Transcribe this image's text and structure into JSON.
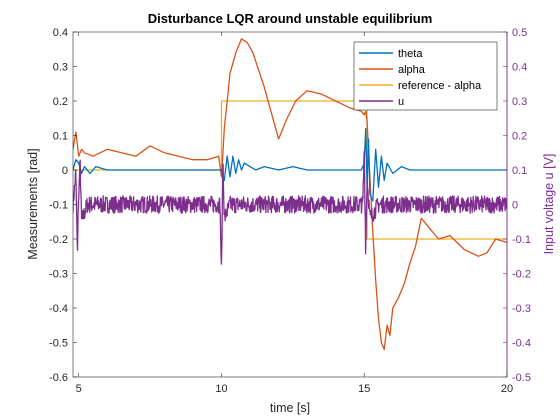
{
  "chart_data": {
    "type": "line",
    "title": "Disturbance LQR around unstable equilibrium",
    "xlabel": "time [s]",
    "ylabel_left": "Measurements [rad]",
    "ylabel_right": "Input voltage u [V]",
    "xlim": [
      4.8,
      20
    ],
    "ylim_left": [
      -0.6,
      0.4
    ],
    "ylim_right": [
      -0.5,
      0.5
    ],
    "xticks": [
      5,
      10,
      15,
      20
    ],
    "yticks_left": [
      -0.6,
      -0.5,
      -0.4,
      -0.3,
      -0.2,
      -0.1,
      0,
      0.1,
      0.2,
      0.3,
      0.4
    ],
    "yticks_right": [
      -0.5,
      -0.4,
      -0.3,
      -0.2,
      -0.1,
      0,
      0.1,
      0.2,
      0.3,
      0.4,
      0.5
    ],
    "grid": false,
    "legend_position": "top-right",
    "colors": {
      "theta": "#0072BD",
      "alpha": "#D95319",
      "reference": "#EDB120",
      "u": "#7E2F8E",
      "left_axis": "#262626",
      "right_axis": "#7E2F8E"
    },
    "series": [
      {
        "name": "theta",
        "axis": "left",
        "x": [
          4.8,
          4.9,
          5.0,
          5.1,
          5.2,
          5.4,
          5.6,
          6.0,
          6.5,
          7.0,
          7.5,
          8.0,
          8.5,
          9.0,
          9.5,
          9.9,
          10.0,
          10.05,
          10.1,
          10.2,
          10.3,
          10.4,
          10.5,
          10.6,
          10.7,
          10.8,
          11.0,
          11.2,
          11.5,
          12.0,
          12.5,
          13.0,
          13.5,
          14.0,
          14.5,
          14.9,
          15.0,
          15.05,
          15.1,
          15.15,
          15.2,
          15.3,
          15.4,
          15.5,
          15.6,
          15.7,
          15.8,
          16.0,
          16.3,
          16.6,
          17.0,
          17.5,
          18.0,
          18.5,
          19.0,
          19.5,
          20.0
        ],
        "y": [
          0.0,
          0.03,
          0.02,
          -0.01,
          0.01,
          -0.01,
          0.01,
          0.0,
          0.0,
          0.0,
          0.0,
          0.0,
          0.0,
          0.0,
          0.0,
          0.0,
          0.0,
          -0.02,
          -0.03,
          0.04,
          -0.02,
          0.04,
          -0.01,
          0.03,
          0.0,
          0.02,
          0.01,
          0.0,
          0.01,
          0.0,
          0.01,
          0.0,
          0.0,
          0.0,
          0.0,
          0.0,
          0.02,
          0.12,
          -0.05,
          0.09,
          -0.07,
          -0.09,
          0.06,
          -0.05,
          0.04,
          -0.03,
          0.02,
          -0.01,
          0.01,
          0.0,
          0.0,
          0.0,
          0.0,
          0.0,
          0.0,
          0.0,
          0.0
        ]
      },
      {
        "name": "alpha",
        "axis": "left",
        "x": [
          4.8,
          4.9,
          5.0,
          5.1,
          5.2,
          5.5,
          6.0,
          6.5,
          7.0,
          7.5,
          8.0,
          8.5,
          9.0,
          9.5,
          9.9,
          10.0,
          10.1,
          10.2,
          10.3,
          10.5,
          10.7,
          10.9,
          11.1,
          11.3,
          11.5,
          11.7,
          12.0,
          12.3,
          12.6,
          13.0,
          13.5,
          14.0,
          14.5,
          14.9,
          15.0,
          15.05,
          15.1,
          15.2,
          15.3,
          15.4,
          15.5,
          15.6,
          15.7,
          15.8,
          15.9,
          16.0,
          16.2,
          16.4,
          16.6,
          16.8,
          17.0,
          17.3,
          17.6,
          18.0,
          18.5,
          19.0,
          19.3,
          19.6,
          20.0
        ],
        "y": [
          0.06,
          0.11,
          0.04,
          0.06,
          0.05,
          0.04,
          0.06,
          0.05,
          0.04,
          0.07,
          0.05,
          0.04,
          0.03,
          0.03,
          0.04,
          -0.02,
          0.12,
          0.2,
          0.28,
          0.34,
          0.38,
          0.37,
          0.34,
          0.29,
          0.24,
          0.18,
          0.09,
          0.15,
          0.2,
          0.23,
          0.22,
          0.2,
          0.18,
          0.17,
          0.16,
          0.17,
          0.14,
          -0.02,
          -0.18,
          -0.32,
          -0.43,
          -0.5,
          -0.52,
          -0.45,
          -0.48,
          -0.4,
          -0.37,
          -0.33,
          -0.27,
          -0.22,
          -0.14,
          -0.17,
          -0.2,
          -0.19,
          -0.23,
          -0.25,
          -0.24,
          -0.2,
          -0.21
        ]
      },
      {
        "name": "reference - alpha",
        "axis": "left",
        "x": [
          4.8,
          10.0,
          10.0,
          15.1,
          15.1,
          20.0
        ],
        "y": [
          0.0,
          0.0,
          0.2,
          0.2,
          -0.2,
          -0.2
        ]
      },
      {
        "name": "u",
        "axis": "right",
        "x": [
          4.8,
          4.9,
          4.95,
          5.0,
          5.05,
          5.1,
          5.3,
          6.0,
          7.0,
          8.0,
          9.0,
          9.95,
          10.0,
          10.05,
          10.1,
          10.3,
          11.0,
          12.0,
          13.0,
          14.0,
          14.95,
          15.0,
          15.05,
          15.1,
          15.2,
          15.5,
          16.0,
          17.0,
          18.0,
          19.0,
          20.0
        ],
        "y": [
          0.0,
          0.09,
          -0.14,
          0.03,
          0.12,
          -0.05,
          0.0,
          0.0,
          0.0,
          0.0,
          0.0,
          0.0,
          -0.21,
          0.13,
          -0.04,
          0.0,
          0.0,
          0.0,
          0.0,
          0.0,
          0.0,
          0.16,
          -0.13,
          0.08,
          -0.04,
          0.0,
          0.0,
          0.0,
          0.0,
          0.0,
          0.0
        ],
        "noise_amplitude": 0.025
      }
    ]
  }
}
